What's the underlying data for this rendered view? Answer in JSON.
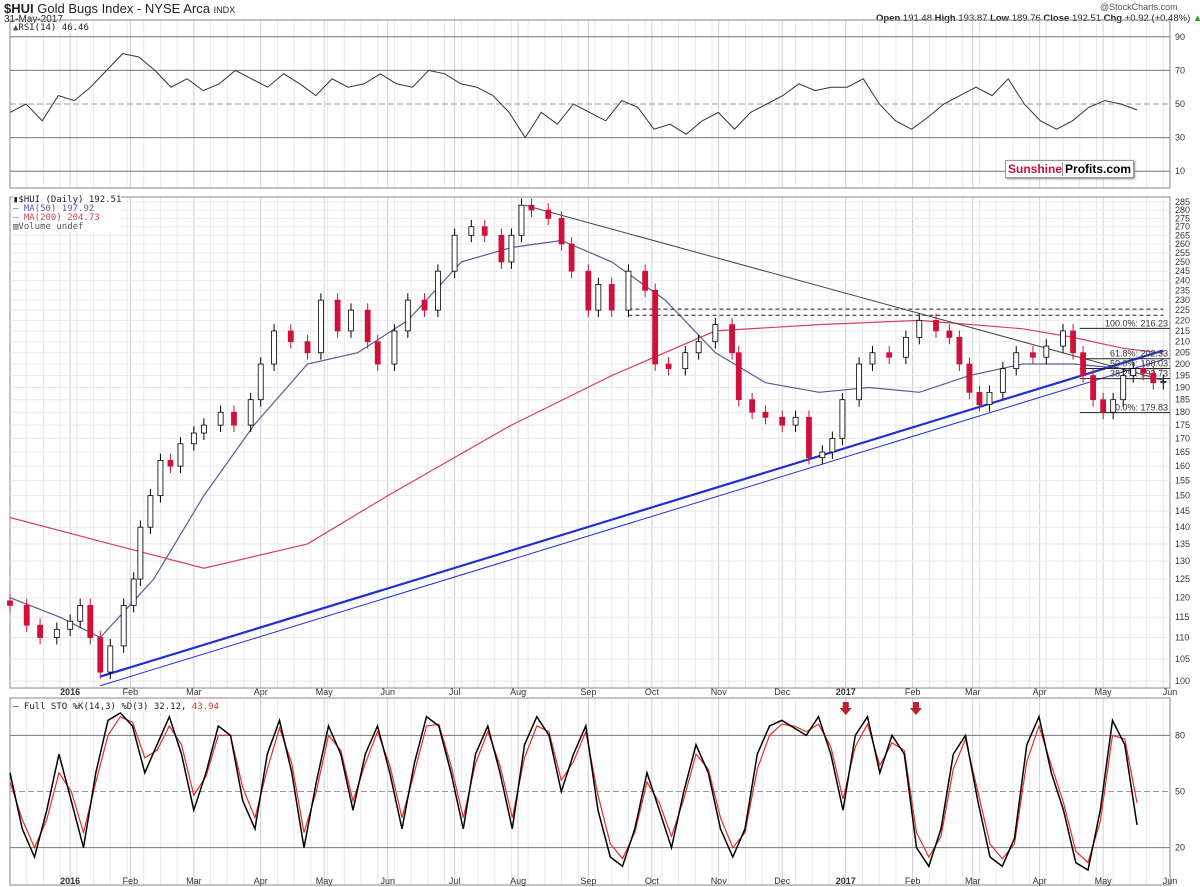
{
  "header": {
    "symbol": "$HUI",
    "name": "Gold Bugs Index - NYSE Arca",
    "exchange": "INDX",
    "date": "31-May-2017",
    "copyright": "@StockCharts.com",
    "open_l": "Open",
    "open": "191.48",
    "high_l": "High",
    "high": "193.87",
    "low_l": "Low",
    "low": "189.76",
    "close_l": "Close",
    "close": "192.51",
    "chg_l": "Chg",
    "chg": "+0.92 (+0.48%)"
  },
  "logo": {
    "part1": "Sunshine",
    "part2": "Profits.com"
  },
  "colors": {
    "up": "#000000",
    "down": "#d0103a",
    "ma50": "#5a5a9a",
    "ma200": "#d9405a",
    "trend": "#1f2fd8",
    "sto_k": "#000000",
    "sto_d": "#e0302a",
    "arrow": "#c0202a"
  },
  "chart_data": [
    {
      "type": "candlestick",
      "title": "$HUI (Daily) 192.51",
      "legend": [
        "MA(50) 197.92",
        "MA(200) 204.73",
        "Volume undef"
      ],
      "yscale": "log",
      "ylim": [
        100,
        285
      ],
      "yticks": [
        100,
        105,
        110,
        115,
        120,
        125,
        130,
        135,
        140,
        145,
        150,
        155,
        160,
        165,
        170,
        175,
        180,
        185,
        190,
        195,
        200,
        205,
        210,
        215,
        220,
        225,
        230,
        235,
        240,
        245,
        250,
        255,
        260,
        265,
        270,
        275,
        280,
        285
      ],
      "months": [
        {
          "label": "2016",
          "d": 18
        },
        {
          "label": "Feb",
          "d": 36
        },
        {
          "label": "Mar",
          "d": 55
        },
        {
          "label": "Apr",
          "d": 75
        },
        {
          "label": "May",
          "d": 94
        },
        {
          "label": "Jun",
          "d": 113
        },
        {
          "label": "Jul",
          "d": 133
        },
        {
          "label": "Aug",
          "d": 152
        },
        {
          "label": "Sep",
          "d": 173
        },
        {
          "label": "Oct",
          "d": 192
        },
        {
          "label": "Nov",
          "d": 212
        },
        {
          "label": "Dec",
          "d": 231
        },
        {
          "label": "2017",
          "d": 250
        },
        {
          "label": "Feb",
          "d": 270
        },
        {
          "label": "Mar",
          "d": 288
        },
        {
          "label": "Apr",
          "d": 308
        },
        {
          "label": "May",
          "d": 327
        },
        {
          "label": "Jun",
          "d": 347
        }
      ],
      "close": [
        [
          0,
          118
        ],
        [
          5,
          113
        ],
        [
          9,
          110
        ],
        [
          14,
          112
        ],
        [
          18,
          114
        ],
        [
          21,
          118
        ],
        [
          24,
          110
        ],
        [
          27,
          102
        ],
        [
          30,
          108
        ],
        [
          34,
          118
        ],
        [
          37,
          125
        ],
        [
          39,
          140
        ],
        [
          42,
          150
        ],
        [
          45,
          162
        ],
        [
          48,
          160
        ],
        [
          51,
          168
        ],
        [
          55,
          172
        ],
        [
          58,
          175
        ],
        [
          63,
          180
        ],
        [
          67,
          175
        ],
        [
          72,
          185
        ],
        [
          75,
          200
        ],
        [
          79,
          215
        ],
        [
          84,
          210
        ],
        [
          89,
          205
        ],
        [
          93,
          230
        ],
        [
          98,
          215
        ],
        [
          102,
          225
        ],
        [
          107,
          210
        ],
        [
          110,
          200
        ],
        [
          115,
          215
        ],
        [
          119,
          230
        ],
        [
          124,
          225
        ],
        [
          128,
          245
        ],
        [
          133,
          265
        ],
        [
          138,
          270
        ],
        [
          142,
          265
        ],
        [
          147,
          250
        ],
        [
          150,
          265
        ],
        [
          153,
          283
        ],
        [
          156,
          280
        ],
        [
          161,
          275
        ],
        [
          165,
          260
        ],
        [
          168,
          245
        ],
        [
          173,
          225
        ],
        [
          176,
          238
        ],
        [
          180,
          225
        ],
        [
          185,
          245
        ],
        [
          190,
          235
        ],
        [
          193,
          200
        ],
        [
          197,
          198
        ],
        [
          202,
          205
        ],
        [
          206,
          210
        ],
        [
          211,
          218
        ],
        [
          216,
          205
        ],
        [
          218,
          185
        ],
        [
          222,
          180
        ],
        [
          226,
          178
        ],
        [
          231,
          175
        ],
        [
          235,
          178
        ],
        [
          239,
          163
        ],
        [
          243,
          165
        ],
        [
          246,
          170
        ],
        [
          249,
          185
        ],
        [
          254,
          200
        ],
        [
          258,
          205
        ],
        [
          263,
          203
        ],
        [
          268,
          212
        ],
        [
          272,
          220
        ],
        [
          277,
          215
        ],
        [
          281,
          212
        ],
        [
          284,
          200
        ],
        [
          287,
          188
        ],
        [
          290,
          183
        ],
        [
          293,
          188
        ],
        [
          297,
          198
        ],
        [
          301,
          205
        ],
        [
          306,
          203
        ],
        [
          310,
          208
        ],
        [
          315,
          215
        ],
        [
          318,
          205
        ],
        [
          321,
          195
        ],
        [
          324,
          185
        ],
        [
          327,
          180
        ],
        [
          330,
          185
        ],
        [
          333,
          195
        ],
        [
          336,
          198
        ],
        [
          339,
          196
        ],
        [
          342,
          192
        ],
        [
          345,
          192.51
        ]
      ],
      "ma50": [
        [
          0,
          120
        ],
        [
          15,
          115
        ],
        [
          27,
          110
        ],
        [
          43,
          125
        ],
        [
          58,
          150
        ],
        [
          73,
          175
        ],
        [
          89,
          200
        ],
        [
          104,
          205
        ],
        [
          119,
          220
        ],
        [
          135,
          250
        ],
        [
          150,
          258
        ],
        [
          165,
          262
        ],
        [
          180,
          250
        ],
        [
          196,
          230
        ],
        [
          211,
          205
        ],
        [
          226,
          192
        ],
        [
          242,
          188
        ],
        [
          257,
          190
        ],
        [
          272,
          188
        ],
        [
          287,
          195
        ],
        [
          303,
          200
        ],
        [
          318,
          200
        ],
        [
          333,
          198
        ],
        [
          345,
          197.92
        ]
      ],
      "ma200": [
        [
          0,
          143
        ],
        [
          30,
          135
        ],
        [
          58,
          128
        ],
        [
          89,
          135
        ],
        [
          113,
          150
        ],
        [
          150,
          175
        ],
        [
          180,
          195
        ],
        [
          211,
          215
        ],
        [
          242,
          218
        ],
        [
          272,
          220
        ],
        [
          303,
          216
        ],
        [
          318,
          212
        ],
        [
          333,
          207
        ],
        [
          345,
          204.73
        ]
      ],
      "trendlines": [
        {
          "from": [
            27,
            101
          ],
          "to": [
            345,
            206
          ],
          "weight": "thick"
        },
        {
          "from": [
            27,
            99
          ],
          "to": [
            345,
            202
          ],
          "weight": "thin"
        },
        {
          "from": [
            154,
            283
          ],
          "to": [
            345,
            193
          ],
          "weight": "black"
        }
      ],
      "resistance": [
        {
          "value": 225.5,
          "from": [
            185,
            345
          ]
        },
        {
          "value": 222.5,
          "from": [
            185,
            345
          ]
        }
      ],
      "fib": [
        {
          "label": "100.0%: 216.23",
          "value": 216.23
        },
        {
          "label": "61.8%: 202.33",
          "value": 202.33
        },
        {
          "label": "50.0%: 198.03",
          "value": 198.03
        },
        {
          "label": "38.2%: 193.73",
          "value": 193.73
        },
        {
          "label": "0.0%: 179.83",
          "value": 179.83
        }
      ]
    },
    {
      "type": "line",
      "title": "RSI(14) 46.46",
      "ylim": [
        0,
        100
      ],
      "yticks": [
        10,
        30,
        50,
        70,
        90
      ],
      "values": [
        45,
        50,
        40,
        55,
        52,
        60,
        70,
        80,
        78,
        70,
        60,
        65,
        58,
        62,
        70,
        65,
        60,
        68,
        62,
        55,
        65,
        60,
        62,
        68,
        62,
        60,
        70,
        68,
        62,
        60,
        55,
        45,
        30,
        45,
        38,
        50,
        45,
        40,
        52,
        48,
        35,
        38,
        32,
        40,
        45,
        35,
        45,
        50,
        55,
        62,
        58,
        60,
        60,
        65,
        50,
        40,
        35,
        42,
        50,
        55,
        60,
        55,
        65,
        50,
        40,
        35,
        40,
        48,
        52,
        50,
        46.46
      ]
    },
    {
      "type": "line",
      "title": "Full STO %K(14,3) %D(3)",
      "k_label": "32.12,",
      "d_label": "43.94",
      "ylim": [
        0,
        100
      ],
      "yticks": [
        20,
        50,
        80
      ],
      "k": [
        60,
        30,
        15,
        40,
        70,
        45,
        20,
        60,
        88,
        92,
        85,
        60,
        75,
        90,
        70,
        40,
        60,
        85,
        80,
        45,
        30,
        70,
        88,
        60,
        20,
        55,
        85,
        70,
        40,
        70,
        85,
        60,
        30,
        65,
        90,
        85,
        60,
        30,
        70,
        85,
        60,
        30,
        75,
        90,
        80,
        50,
        70,
        85,
        40,
        15,
        10,
        30,
        60,
        40,
        20,
        50,
        75,
        60,
        30,
        15,
        30,
        70,
        85,
        88,
        84,
        80,
        90,
        70,
        40,
        80,
        90,
        60,
        80,
        70,
        20,
        10,
        30,
        70,
        80,
        45,
        15,
        10,
        25,
        75,
        90,
        60,
        40,
        12,
        8,
        40,
        88,
        75,
        32.12
      ],
      "d": [
        55,
        35,
        20,
        35,
        60,
        50,
        28,
        55,
        80,
        90,
        87,
        68,
        72,
        85,
        75,
        48,
        58,
        80,
        80,
        52,
        36,
        62,
        84,
        65,
        28,
        50,
        80,
        72,
        45,
        65,
        82,
        64,
        36,
        60,
        85,
        86,
        64,
        36,
        65,
        82,
        64,
        36,
        68,
        85,
        82,
        56,
        66,
        82,
        48,
        22,
        14,
        28,
        55,
        44,
        26,
        46,
        70,
        62,
        36,
        20,
        28,
        62,
        80,
        86,
        85,
        82,
        86,
        74,
        46,
        74,
        86,
        64,
        76,
        72,
        28,
        15,
        26,
        62,
        78,
        50,
        22,
        14,
        22,
        66,
        85,
        64,
        44,
        18,
        12,
        34,
        80,
        78,
        43.94
      ],
      "arrows": [
        [
          250,
          88
        ],
        [
          271,
          88
        ]
      ]
    }
  ]
}
